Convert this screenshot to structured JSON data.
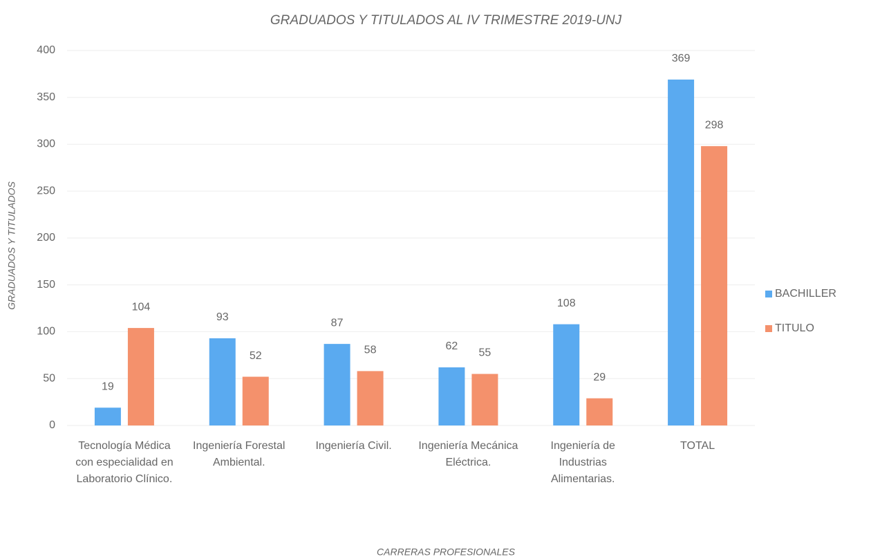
{
  "chart_data": {
    "type": "bar",
    "title": "GRADUADOS Y TITULADOS AL IV TRIMESTRE 2019-UNJ",
    "x_label": "CARRERAS PROFESIONALES",
    "y_label": "GRADUADOS Y TITULADOS",
    "categories": [
      "Tecnología Médica con especialidad en Laboratorio Clínico.",
      "Ingeniería Forestal Ambiental.",
      "Ingeniería Civil.",
      "Ingeniería Mecánica Eléctrica.",
      "Ingeniería de Industrias Alimentarias.",
      "TOTAL"
    ],
    "series": [
      {
        "name": "BACHILLER",
        "color": "#5aaaf0",
        "values": [
          19,
          93,
          87,
          62,
          108,
          369
        ]
      },
      {
        "name": "TITULO",
        "color": "#f4916c",
        "values": [
          104,
          52,
          58,
          55,
          29,
          298
        ]
      }
    ],
    "ylim": [
      0,
      400
    ],
    "yticks": [
      0,
      50,
      100,
      150,
      200,
      250,
      300,
      350,
      400
    ],
    "grid": true,
    "legend": "right"
  }
}
